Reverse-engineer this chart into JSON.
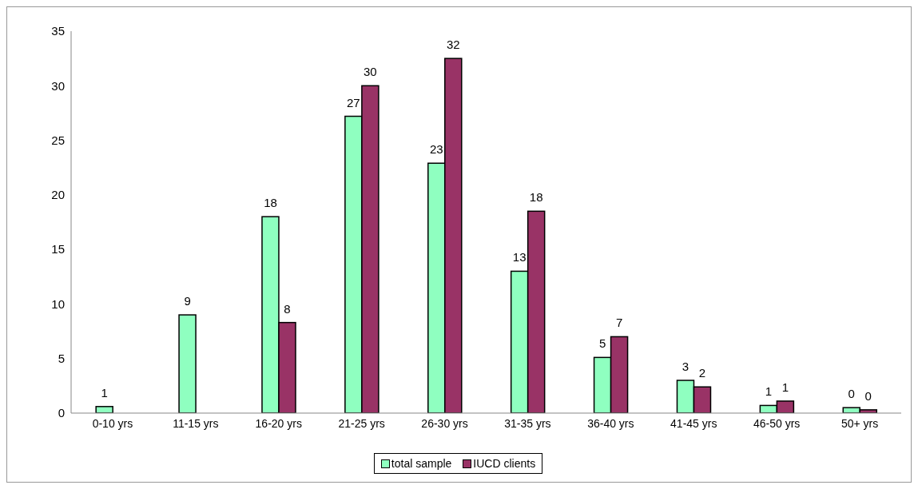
{
  "chart_data": {
    "type": "bar",
    "categories": [
      "0-10 yrs",
      "11-15 yrs",
      "16-20 yrs",
      "21-25 yrs",
      "26-30 yrs",
      "31-35 yrs",
      "36-40 yrs",
      "41-45 yrs",
      "46-50 yrs",
      "50+ yrs"
    ],
    "series": [
      {
        "name": "total sample",
        "color": "#8fffc0",
        "values": [
          0.6,
          9,
          18,
          27.2,
          22.9,
          13,
          5.1,
          3,
          0.7,
          0.5
        ],
        "value_labels": [
          "1",
          "9",
          "18",
          "27",
          "23",
          "13",
          "5",
          "3",
          "1",
          "0"
        ]
      },
      {
        "name": "IUCD clients",
        "color": "#993366",
        "values": [
          null,
          null,
          8.3,
          30,
          32.5,
          18.5,
          7,
          2.4,
          1.1,
          0.3
        ],
        "value_labels": [
          null,
          null,
          "8",
          "30",
          "32",
          "18",
          "7",
          "2",
          "1",
          "0"
        ]
      }
    ],
    "ylim": [
      0,
      35
    ],
    "yticks": [
      0,
      5,
      10,
      15,
      20,
      25,
      30,
      35
    ],
    "grid": false,
    "legend": "bottom"
  }
}
